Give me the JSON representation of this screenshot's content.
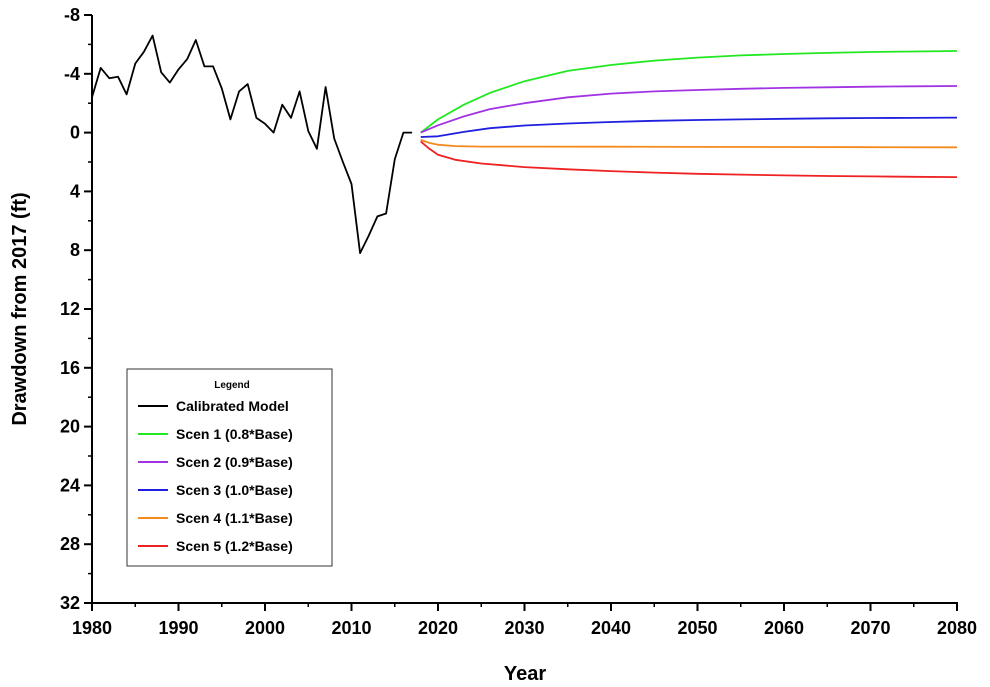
{
  "chart_data": {
    "type": "line",
    "xlabel": "Year",
    "ylabel": "Drawdown from 2017 (ft)",
    "xlim": [
      1980,
      2080
    ],
    "ylim": [
      32,
      -8
    ],
    "y_inverted": true,
    "grid": false,
    "legend_position": "bottom-left",
    "legend_title": "Legend",
    "x_ticks": [
      1980,
      1990,
      2000,
      2010,
      2020,
      2030,
      2040,
      2050,
      2060,
      2070,
      2080
    ],
    "x_tick_labels": [
      "1980",
      "1990",
      "2000",
      "2010",
      "2020",
      "2030",
      "2040",
      "2050",
      "2060",
      "2070",
      "2080"
    ],
    "y_ticks": [
      -8,
      -4,
      0,
      4,
      8,
      12,
      16,
      20,
      24,
      28,
      32
    ],
    "y_tick_labels": [
      "-8",
      "-4",
      "0",
      "4",
      "8",
      "12",
      "16",
      "20",
      "24",
      "28",
      "32"
    ],
    "series": [
      {
        "name": "Calibrated Model",
        "color": "#000000",
        "x": [
          1980,
          1981,
          1982,
          1983,
          1984,
          1985,
          1986,
          1987,
          1988,
          1989,
          1990,
          1991,
          1992,
          1993,
          1994,
          1995,
          1996,
          1997,
          1998,
          1999,
          2000,
          2001,
          2002,
          2003,
          2004,
          2005,
          2006,
          2007,
          2008,
          2009,
          2010,
          2011,
          2012,
          2013,
          2014,
          2015,
          2016,
          2017
        ],
        "y": [
          -2.4,
          -4.4,
          -3.7,
          -3.8,
          -2.6,
          -4.7,
          -5.5,
          -6.6,
          -4.1,
          -3.4,
          -4.3,
          -5.0,
          -6.3,
          -4.5,
          -4.5,
          -3.0,
          -0.9,
          -2.8,
          -3.3,
          -1.0,
          -0.6,
          0.0,
          -1.9,
          -1.0,
          -2.8,
          -0.1,
          1.1,
          -3.1,
          0.4,
          2.0,
          3.5,
          8.2,
          7.0,
          5.7,
          5.5,
          1.8,
          0.0,
          0.0
        ]
      },
      {
        "name": "Scen 1 (0.8*Base)",
        "color": "#22e822",
        "x": [
          2018,
          2020,
          2023,
          2026,
          2030,
          2035,
          2040,
          2045,
          2050,
          2055,
          2060,
          2065,
          2070,
          2075,
          2080
        ],
        "y": [
          0.0,
          -0.9,
          -1.9,
          -2.7,
          -3.5,
          -4.2,
          -4.6,
          -4.9,
          -5.1,
          -5.25,
          -5.35,
          -5.42,
          -5.48,
          -5.52,
          -5.55
        ]
      },
      {
        "name": "Scen 2 (0.9*Base)",
        "color": "#a233e3",
        "x": [
          2018,
          2020,
          2023,
          2026,
          2030,
          2035,
          2040,
          2045,
          2050,
          2055,
          2060,
          2065,
          2070,
          2075,
          2080
        ],
        "y": [
          0.0,
          -0.5,
          -1.1,
          -1.6,
          -2.0,
          -2.4,
          -2.65,
          -2.8,
          -2.9,
          -2.98,
          -3.04,
          -3.08,
          -3.12,
          -3.15,
          -3.17
        ]
      },
      {
        "name": "Scen 3 (1.0*Base)",
        "color": "#1f1fe0",
        "x": [
          2018,
          2020,
          2023,
          2026,
          2030,
          2035,
          2040,
          2045,
          2050,
          2055,
          2060,
          2065,
          2070,
          2075,
          2080
        ],
        "y": [
          0.3,
          0.25,
          -0.05,
          -0.3,
          -0.48,
          -0.62,
          -0.72,
          -0.8,
          -0.86,
          -0.9,
          -0.94,
          -0.97,
          -0.99,
          -1.0,
          -1.02
        ]
      },
      {
        "name": "Scen 4 (1.1*Base)",
        "color": "#f58a1f",
        "x": [
          2018,
          2019,
          2020,
          2022,
          2025,
          2030,
          2040,
          2050,
          2060,
          2070,
          2080
        ],
        "y": [
          0.5,
          0.7,
          0.82,
          0.92,
          0.95,
          0.95,
          0.96,
          0.97,
          0.98,
          0.99,
          1.0
        ]
      },
      {
        "name": "Scen 5 (1.2*Base)",
        "color": "#ee2222",
        "x": [
          2018,
          2019,
          2020,
          2022,
          2025,
          2030,
          2035,
          2040,
          2045,
          2050,
          2055,
          2060,
          2065,
          2070,
          2075,
          2080
        ],
        "y": [
          0.6,
          1.1,
          1.5,
          1.85,
          2.1,
          2.35,
          2.5,
          2.62,
          2.72,
          2.8,
          2.86,
          2.91,
          2.95,
          2.98,
          3.01,
          3.03
        ]
      }
    ]
  }
}
